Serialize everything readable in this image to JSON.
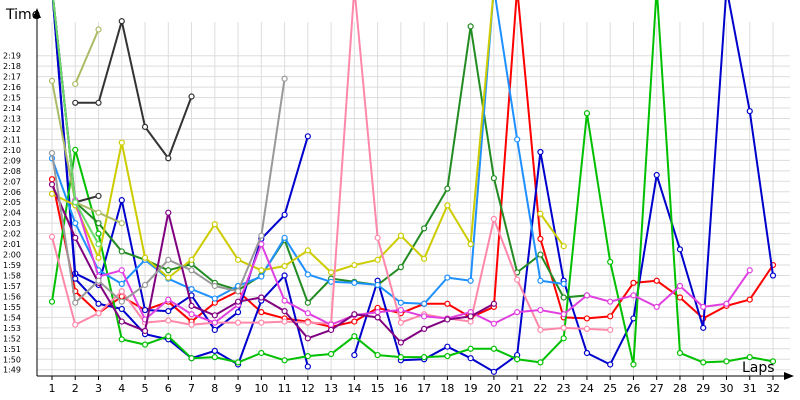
{
  "chart_data": {
    "type": "line",
    "title": "",
    "xlabel": "Laps",
    "ylabel": "Time",
    "x_ticks": [
      "1",
      "2",
      "3",
      "4",
      "5",
      "6",
      "7",
      "8",
      "9",
      "10",
      "11",
      "12",
      "13",
      "14",
      "15",
      "16",
      "17",
      "18",
      "19",
      "20",
      "21",
      "22",
      "23",
      "24",
      "25",
      "26",
      "27",
      "28",
      "29",
      "30",
      "31",
      "32"
    ],
    "y_ticks": [
      "1:49",
      "1:50",
      "1:51",
      "1:52",
      "1:53",
      "1:54",
      "1:55",
      "1:56",
      "1:57",
      "1:58",
      "1:59",
      "2:00",
      "2:01",
      "2:02",
      "2:03",
      "2:04",
      "2:05",
      "2:06",
      "2:07",
      "2:08",
      "2:09",
      "2:10",
      "2:11",
      "2:12",
      "2:13",
      "2:14",
      "2:15",
      "2:16",
      "2:17",
      "2:18",
      "2:19"
    ],
    "y_unit": "seconds",
    "ylim": [
      108.4,
      143
    ],
    "xlim": [
      0.5,
      32
    ],
    "grid": true,
    "legend": "none",
    "series": [
      {
        "color": "#ff0000",
        "values": [
          [
            1,
            127.2
          ],
          [
            2,
            116.5
          ],
          [
            3,
            114.4
          ],
          [
            4,
            116.0
          ],
          [
            5,
            114.7
          ],
          [
            6,
            115.5
          ],
          [
            7,
            113.6
          ],
          [
            8,
            115.4
          ],
          [
            9,
            116.5
          ],
          [
            10,
            114.5
          ],
          [
            11,
            113.9
          ],
          [
            12,
            113.6
          ],
          [
            13,
            113.1
          ],
          [
            14,
            113.6
          ],
          [
            15,
            114.9
          ],
          [
            16,
            114.4
          ],
          [
            17,
            115.3
          ],
          [
            18,
            115.3
          ],
          [
            19,
            114.0
          ],
          [
            20,
            115.0
          ],
          [
            21,
            143
          ],
          [
            22,
            121.5
          ],
          [
            23,
            114.0
          ],
          [
            24,
            113.9
          ],
          [
            25,
            114.1
          ],
          [
            26,
            117.3
          ],
          [
            27,
            117.5
          ],
          [
            28,
            115.9
          ],
          [
            29,
            113.9
          ],
          [
            30,
            115.1
          ],
          [
            31,
            115.7
          ],
          [
            32,
            119.0
          ]
        ]
      },
      {
        "color": "#0000cc",
        "values": [
          [
            1,
            143
          ],
          [
            2,
            118.2
          ],
          [
            3,
            117.1
          ],
          [
            4,
            125.2
          ],
          [
            5,
            114.7
          ],
          [
            6,
            114.6
          ],
          [
            7,
            116.1
          ],
          [
            8,
            112.8
          ],
          [
            9,
            114.5
          ],
          [
            10,
            121.5
          ],
          [
            11,
            123.8
          ],
          [
            12,
            131.3
          ],
          [
            13,
            null
          ],
          [
            14,
            110.4
          ],
          [
            15,
            117.5
          ],
          [
            16,
            109.9
          ],
          [
            17,
            110.0
          ],
          [
            18,
            111.2
          ],
          [
            19,
            110.1
          ],
          [
            20,
            108.8
          ],
          [
            21,
            110.4
          ],
          [
            22,
            129.8
          ],
          [
            23,
            117.5
          ],
          [
            24,
            110.6
          ],
          [
            25,
            109.5
          ],
          [
            26,
            113.9
          ],
          [
            27,
            127.6
          ],
          [
            28,
            120.5
          ],
          [
            29,
            113.0
          ],
          [
            30,
            143
          ],
          [
            31,
            133.7
          ],
          [
            32,
            118.0
          ]
        ]
      },
      {
        "color": "#0000cc",
        "values": [
          [
            1,
            143
          ],
          [
            2,
            117.7
          ],
          [
            3,
            115.3
          ],
          [
            4,
            114.8
          ],
          [
            5,
            112.4
          ],
          [
            6,
            111.9
          ],
          [
            7,
            110.1
          ],
          [
            8,
            110.8
          ],
          [
            9,
            109.5
          ],
          [
            10,
            115.6
          ],
          [
            11,
            118.0
          ],
          [
            12,
            109.3
          ]
        ]
      },
      {
        "color": "#00c000",
        "values": [
          [
            1,
            115.5
          ],
          [
            2,
            130.0
          ],
          [
            3,
            122.0
          ],
          [
            4,
            111.9
          ],
          [
            5,
            111.4
          ],
          [
            6,
            112.2
          ],
          [
            7,
            110.1
          ],
          [
            8,
            110.2
          ],
          [
            9,
            109.7
          ],
          [
            10,
            110.6
          ],
          [
            11,
            109.9
          ],
          [
            12,
            110.3
          ],
          [
            13,
            110.5
          ],
          [
            14,
            112.2
          ],
          [
            15,
            110.4
          ],
          [
            16,
            110.2
          ],
          [
            17,
            110.2
          ],
          [
            18,
            110.3
          ],
          [
            19,
            111.0
          ],
          [
            20,
            111.0
          ],
          [
            21,
            110.0
          ],
          [
            22,
            109.7
          ],
          [
            23,
            112.0
          ],
          [
            24,
            133.5
          ],
          [
            25,
            119.3
          ],
          [
            26,
            109.5
          ],
          [
            27,
            143
          ],
          [
            28,
            110.6
          ],
          [
            29,
            109.7
          ],
          [
            30,
            109.8
          ],
          [
            31,
            110.2
          ],
          [
            32,
            109.8
          ]
        ]
      },
      {
        "color": "#228b22",
        "values": [
          [
            1,
            143
          ],
          [
            2,
            125.0
          ],
          [
            3,
            123.0
          ],
          [
            4,
            120.3
          ],
          [
            5,
            119.5
          ],
          [
            6,
            118.5
          ],
          [
            7,
            119.1
          ],
          [
            8,
            117.3
          ],
          [
            9,
            116.6
          ],
          [
            10,
            118.0
          ],
          [
            11,
            121.4
          ],
          [
            12,
            115.4
          ],
          [
            13,
            117.7
          ],
          [
            14,
            117.4
          ],
          [
            15,
            117.1
          ],
          [
            16,
            118.8
          ],
          [
            17,
            122.5
          ],
          [
            18,
            126.3
          ],
          [
            19,
            141.8
          ],
          [
            20,
            127.3
          ],
          [
            21,
            118.3
          ],
          [
            22,
            120.0
          ],
          [
            23,
            115.9
          ],
          [
            24,
            116.1
          ]
        ]
      },
      {
        "color": "#1e90ff",
        "values": [
          [
            1,
            129.2
          ],
          [
            2,
            123.0
          ],
          [
            3,
            118.5
          ],
          [
            4,
            117.2
          ],
          [
            5,
            119.5
          ],
          [
            6,
            117.7
          ],
          [
            7,
            116.7
          ],
          [
            8,
            115.8
          ],
          [
            9,
            117.0
          ],
          [
            10,
            117.9
          ],
          [
            11,
            121.6
          ],
          [
            12,
            118.1
          ],
          [
            13,
            117.4
          ],
          [
            14,
            117.3
          ],
          [
            15,
            117.1
          ],
          [
            16,
            115.4
          ],
          [
            17,
            115.3
          ],
          [
            18,
            117.8
          ],
          [
            19,
            117.5
          ],
          [
            20,
            143
          ],
          [
            21,
            131.0
          ],
          [
            22,
            117.5
          ],
          [
            23,
            117.2
          ]
        ]
      },
      {
        "color": "#cccc00",
        "values": [
          [
            1,
            125.8
          ],
          [
            2,
            124.7
          ],
          [
            3,
            119.7
          ],
          [
            4,
            130.7
          ],
          [
            5,
            119.7
          ],
          [
            6,
            117.8
          ],
          [
            7,
            119.5
          ],
          [
            8,
            122.9
          ],
          [
            9,
            119.5
          ],
          [
            10,
            118.5
          ],
          [
            11,
            118.9
          ],
          [
            12,
            120.4
          ],
          [
            13,
            118.3
          ],
          [
            14,
            119.0
          ],
          [
            15,
            119.5
          ],
          [
            16,
            121.8
          ],
          [
            17,
            119.6
          ],
          [
            18,
            124.7
          ],
          [
            19,
            121.0
          ],
          [
            20,
            143
          ],
          [
            21,
            null
          ],
          [
            22,
            123.9
          ],
          [
            23,
            120.8
          ]
        ]
      },
      {
        "color": "#ff88aa",
        "values": [
          [
            1,
            121.7
          ],
          [
            2,
            113.3
          ],
          [
            3,
            114.4
          ],
          [
            4,
            116.5
          ],
          [
            5,
            113.5
          ],
          [
            6,
            113.7
          ],
          [
            7,
            113.3
          ],
          [
            8,
            113.5
          ],
          [
            9,
            113.5
          ],
          [
            10,
            113.5
          ],
          [
            11,
            113.6
          ],
          [
            12,
            113.5
          ],
          [
            13,
            113.4
          ],
          [
            14,
            143
          ],
          [
            15,
            121.6
          ],
          [
            16,
            113.5
          ],
          [
            17,
            114.3
          ],
          [
            18,
            113.9
          ],
          [
            19,
            113.6
          ],
          [
            20,
            123.4
          ],
          [
            21,
            117.6
          ],
          [
            22,
            112.8
          ],
          [
            23,
            113.0
          ],
          [
            24,
            112.9
          ],
          [
            25,
            112.8
          ]
        ]
      },
      {
        "color": "#e040e0",
        "values": [
          [
            1,
            143
          ],
          [
            2,
            125.2
          ],
          [
            3,
            117.9
          ],
          [
            4,
            118.5
          ],
          [
            5,
            113.8
          ],
          [
            6,
            115.7
          ],
          [
            7,
            114.3
          ],
          [
            8,
            113.5
          ],
          [
            9,
            115.2
          ],
          [
            10,
            121.0
          ],
          [
            11,
            115.6
          ],
          [
            12,
            114.4
          ],
          [
            13,
            113.3
          ],
          [
            14,
            114.2
          ],
          [
            15,
            114.5
          ],
          [
            16,
            114.7
          ],
          [
            17,
            114.1
          ],
          [
            18,
            113.9
          ],
          [
            19,
            114.5
          ],
          [
            20,
            113.4
          ],
          [
            21,
            114.5
          ],
          [
            22,
            114.7
          ],
          [
            23,
            114.3
          ],
          [
            24,
            116.1
          ],
          [
            25,
            115.5
          ],
          [
            26,
            116.1
          ],
          [
            27,
            115.0
          ],
          [
            28,
            117.0
          ],
          [
            29,
            115.0
          ],
          [
            30,
            115.3
          ],
          [
            31,
            118.5
          ]
        ]
      },
      {
        "color": "#800080",
        "values": [
          [
            1,
            126.7
          ],
          [
            2,
            121.6
          ],
          [
            3,
            117.3
          ],
          [
            4,
            113.6
          ],
          [
            5,
            112.7
          ],
          [
            6,
            124.0
          ],
          [
            7,
            115.1
          ],
          [
            8,
            114.2
          ],
          [
            9,
            115.5
          ],
          [
            10,
            115.9
          ],
          [
            11,
            114.6
          ],
          [
            12,
            112.0
          ],
          [
            13,
            112.8
          ],
          [
            14,
            114.3
          ],
          [
            15,
            114.0
          ],
          [
            16,
            111.6
          ],
          [
            17,
            112.9
          ],
          [
            18,
            113.8
          ],
          [
            19,
            114.1
          ],
          [
            20,
            115.3
          ]
        ]
      },
      {
        "color": "#333333",
        "values": [
          [
            1,
            143
          ],
          [
            2,
            125.0
          ],
          [
            3,
            125.6
          ]
        ]
      },
      {
        "color": "#333333",
        "values": [
          [
            2,
            134.5
          ],
          [
            3,
            134.5
          ],
          [
            4,
            142.3
          ],
          [
            5,
            132.2
          ],
          [
            6,
            129.2
          ],
          [
            7,
            135.1
          ]
        ]
      },
      {
        "color": "#999999",
        "values": [
          [
            1,
            129.7
          ],
          [
            2,
            115.4
          ],
          [
            3,
            117.5
          ],
          [
            4,
            115.5
          ],
          [
            5,
            117.1
          ],
          [
            6,
            119.5
          ],
          [
            7,
            118.5
          ],
          [
            8,
            117.0
          ],
          [
            9,
            116.5
          ],
          [
            10,
            121.8
          ],
          [
            11,
            136.8
          ]
        ]
      },
      {
        "color": "#aabb66",
        "values": [
          [
            1,
            136.6
          ],
          [
            2,
            125.0
          ],
          [
            3,
            124.0
          ],
          [
            4,
            123.0
          ]
        ]
      },
      {
        "color": "#aabb66",
        "values": [
          [
            2,
            136.3
          ],
          [
            3,
            141.5
          ]
        ]
      },
      {
        "color": "#66dd66",
        "values": [
          [
            1,
            143
          ],
          [
            2,
            125.0
          ],
          [
            3,
            121.0
          ]
        ]
      }
    ]
  }
}
